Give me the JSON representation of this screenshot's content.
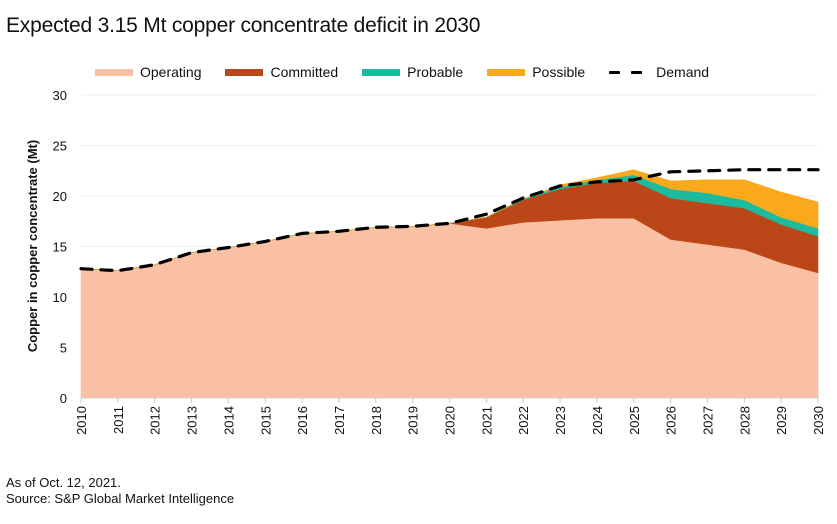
{
  "chart_data": {
    "type": "area",
    "stacked": true,
    "title": "Expected 3.15 Mt copper concentrate deficit in 2030",
    "xlabel": "",
    "ylabel": "Copper in copper concentrate (Mt)",
    "ylim": [
      0,
      30
    ],
    "yticks": [
      0,
      5,
      10,
      15,
      20,
      25,
      30
    ],
    "grid": true,
    "legend_position": "top",
    "x": [
      "2010",
      "2011",
      "2012",
      "2013",
      "2014",
      "2015",
      "2016",
      "2017",
      "2018",
      "2019",
      "2020",
      "2021",
      "2022",
      "2023",
      "2024",
      "2025",
      "2026",
      "2027",
      "2028",
      "2029",
      "2030"
    ],
    "series": [
      {
        "name": "Operating",
        "color": "#F9C0A3",
        "values": [
          12.8,
          12.6,
          13.2,
          14.4,
          14.9,
          15.5,
          16.3,
          16.5,
          16.9,
          17.0,
          17.3,
          16.8,
          17.4,
          17.6,
          17.8,
          17.8,
          15.7,
          15.2,
          14.7,
          13.4,
          12.4
        ]
      },
      {
        "name": "Committed",
        "color": "#BB4719",
        "values": [
          0,
          0,
          0,
          0,
          0,
          0,
          0,
          0,
          0,
          0,
          0,
          1.1,
          2.2,
          3.1,
          3.5,
          3.7,
          4.1,
          4.1,
          4.1,
          3.8,
          3.6
        ]
      },
      {
        "name": "Probable",
        "color": "#1DBB9D",
        "values": [
          0,
          0,
          0,
          0,
          0,
          0,
          0,
          0,
          0,
          0,
          0,
          0,
          0.1,
          0.2,
          0.3,
          0.6,
          0.9,
          1.0,
          0.8,
          0.7,
          0.8
        ]
      },
      {
        "name": "Possible",
        "color": "#FBA91C",
        "values": [
          0,
          0,
          0,
          0,
          0,
          0,
          0,
          0,
          0,
          0,
          0,
          0,
          0,
          0.2,
          0.2,
          0.5,
          0.8,
          1.3,
          2.0,
          2.5,
          2.6
        ]
      }
    ],
    "line_series": [
      {
        "name": "Demand",
        "color": "#000000",
        "style": "dashed",
        "values": [
          12.8,
          12.6,
          13.2,
          14.4,
          14.9,
          15.5,
          16.3,
          16.5,
          16.9,
          17.0,
          17.3,
          18.2,
          19.8,
          21.0,
          21.4,
          21.6,
          22.4,
          22.5,
          22.6,
          22.6,
          22.6
        ]
      }
    ]
  },
  "legend": {
    "operating": "Operating",
    "committed": "Committed",
    "probable": "Probable",
    "possible": "Possible",
    "demand": "Demand"
  },
  "footer": {
    "as_of": "As of Oct. 12, 2021.",
    "source": "Source: S&P Global Market Intelligence"
  }
}
